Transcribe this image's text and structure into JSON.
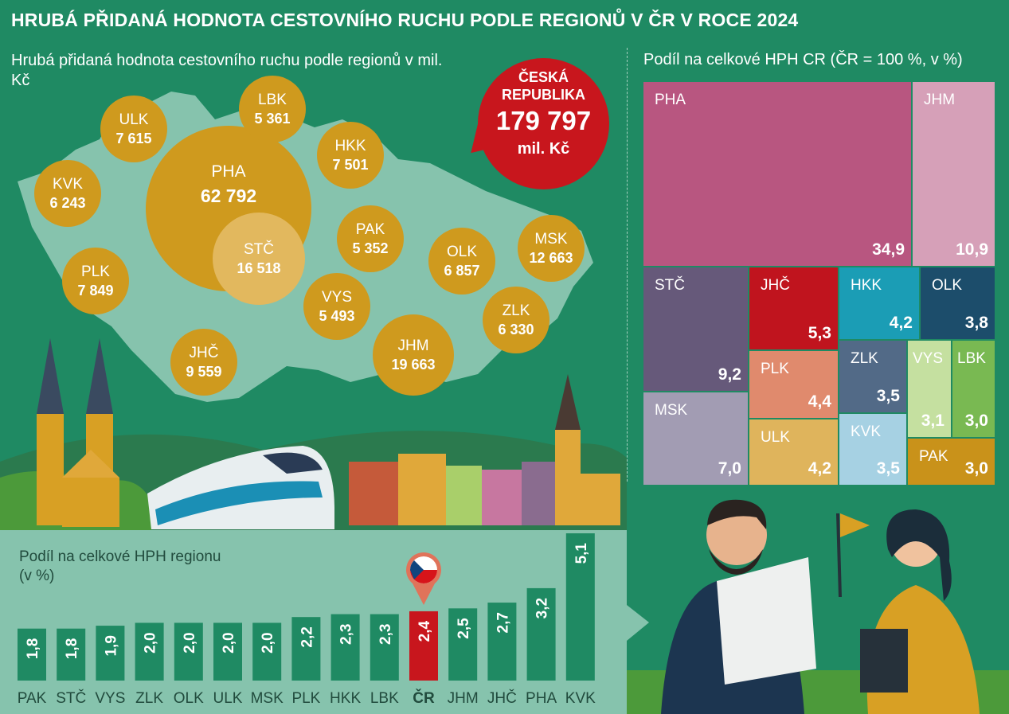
{
  "title": "HRUBÁ PŘIDANÁ HODNOTA CESTOVNÍHO RUCHU PODLE REGIONŮ V ČR V  ROCE 2024",
  "map": {
    "subtitle": "Hrubá přidaná hodnota cestovního ruchu podle regionů v mil. Kč",
    "country": {
      "name": "ČESKÁ REPUBLIKA",
      "value": "179 797",
      "unit": "mil. Kč"
    }
  },
  "treemap_subtitle": "Podíl na celkové HPH CR (ČR = 100 %, v %)",
  "bars_subtitle": "Podíl na celkové HPH regionu (v %)",
  "colors": {
    "background": "#1f8a63",
    "bubble": "#cf9a1e",
    "bubble_light": "#e2b85e",
    "bar": "#1f8a63",
    "bar_highlight": "#c8161d",
    "bar_panel": "#86c3ad",
    "map_land": "#86c3ad"
  },
  "chart_data": [
    {
      "type": "bubble",
      "title": "Hrubá přidaná hodnota cestovního ruchu podle regionů v mil. Kč",
      "points": [
        {
          "label": "PHA",
          "value": 62792,
          "display": "62 792"
        },
        {
          "label": "STČ",
          "value": 16518,
          "display": "16 518"
        },
        {
          "label": "JHM",
          "value": 19663,
          "display": "19 663"
        },
        {
          "label": "MSK",
          "value": 12663,
          "display": "12 663"
        },
        {
          "label": "JHČ",
          "value": 9559,
          "display": "9 559"
        },
        {
          "label": "PLK",
          "value": 7849,
          "display": "7 849"
        },
        {
          "label": "ULK",
          "value": 7615,
          "display": "7 615"
        },
        {
          "label": "HKK",
          "value": 7501,
          "display": "7 501"
        },
        {
          "label": "OLK",
          "value": 6857,
          "display": "6 857"
        },
        {
          "label": "ZLK",
          "value": 6330,
          "display": "6 330"
        },
        {
          "label": "KVK",
          "value": 6243,
          "display": "6 243"
        },
        {
          "label": "VYS",
          "value": 5493,
          "display": "5 493"
        },
        {
          "label": "LBK",
          "value": 5361,
          "display": "5 361"
        },
        {
          "label": "PAK",
          "value": 5352,
          "display": "5 352"
        }
      ]
    },
    {
      "type": "treemap",
      "title": "Podíl na celkové HPH CR (ČR = 100 %, v %)",
      "cells": [
        {
          "label": "PHA",
          "value": 34.9,
          "display": "34,9",
          "color": "#b85680"
        },
        {
          "label": "JHM",
          "value": 10.9,
          "display": "10,9",
          "color": "#d6a0b8"
        },
        {
          "label": "STČ",
          "value": 9.2,
          "display": "9,2",
          "color": "#66597a"
        },
        {
          "label": "JHČ",
          "value": 5.3,
          "display": "5,3",
          "color": "#c0141e"
        },
        {
          "label": "HKK",
          "value": 4.2,
          "display": "4,2",
          "color": "#1b9db5"
        },
        {
          "label": "OLK",
          "value": 3.8,
          "display": "3,8",
          "color": "#1c4d6b"
        },
        {
          "label": "MSK",
          "value": 7.0,
          "display": "7,0",
          "color": "#a29cb3"
        },
        {
          "label": "PLK",
          "value": 4.4,
          "display": "4,4",
          "color": "#e08a6d"
        },
        {
          "label": "ULK",
          "value": 4.2,
          "display": "4,2",
          "color": "#dfb45c"
        },
        {
          "label": "ZLK",
          "value": 3.5,
          "display": "3,5",
          "color": "#526a87"
        },
        {
          "label": "KVK",
          "value": 3.5,
          "display": "3,5",
          "color": "#a6d1e3"
        },
        {
          "label": "VYS",
          "value": 3.1,
          "display": "3,1",
          "color": "#c5e0a0"
        },
        {
          "label": "LBK",
          "value": 3.0,
          "display": "3,0",
          "color": "#79b952"
        },
        {
          "label": "PAK",
          "value": 3.0,
          "display": "3,0",
          "color": "#c9921a"
        }
      ]
    },
    {
      "type": "bar",
      "title": "Podíl na celkové HPH regionu (v %)",
      "categories": [
        "PAK",
        "STČ",
        "VYS",
        "ZLK",
        "OLK",
        "ULK",
        "MSK",
        "PLK",
        "HKK",
        "LBK",
        "ČR",
        "JHM",
        "JHČ",
        "PHA",
        "KVK"
      ],
      "values": [
        1.8,
        1.8,
        1.9,
        2.0,
        2.0,
        2.0,
        2.0,
        2.2,
        2.3,
        2.3,
        2.4,
        2.5,
        2.7,
        3.2,
        5.1
      ],
      "value_labels": [
        "1,8",
        "1,8",
        "1,9",
        "2,0",
        "2,0",
        "2,0",
        "2,0",
        "2,2",
        "2,3",
        "2,3",
        "2,4",
        "2,5",
        "2,7",
        "3,2",
        "5,1"
      ],
      "highlight": "ČR",
      "ylim": [
        0,
        5.1
      ]
    }
  ]
}
